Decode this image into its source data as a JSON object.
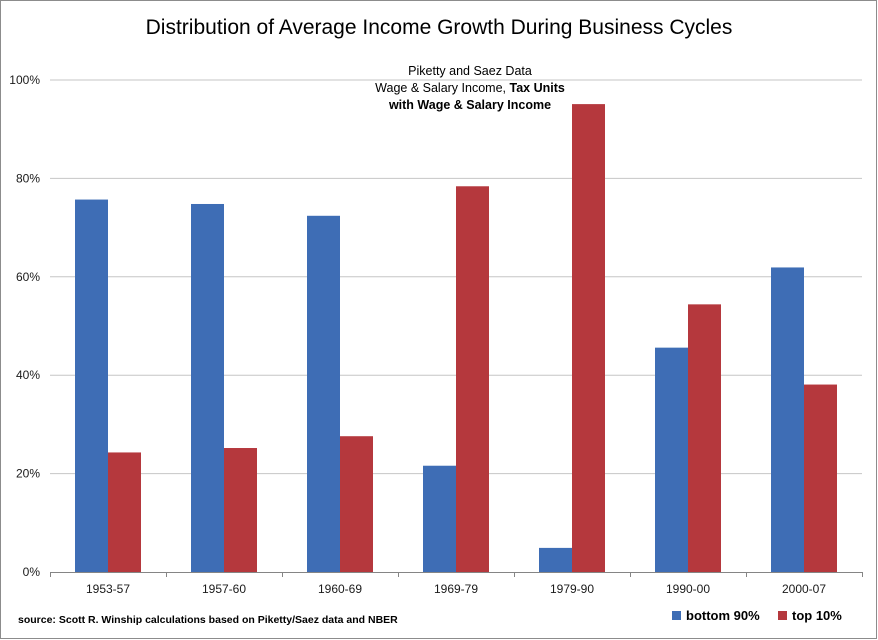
{
  "colors": {
    "bottom90": "#3e6db5",
    "top10": "#b5383d",
    "grid": "#c6c6c6",
    "axis": "#858585"
  },
  "chart_data": {
    "type": "bar",
    "title": "Distribution of Average Income Growth During Business Cycles",
    "subtitle": {
      "line1": "Piketty and Saez Data",
      "line2_regular": "Wage & Salary Income, ",
      "line2_bold": "Tax Units",
      "line3_bold": "with Wage & Salary Income"
    },
    "source": "source: Scott R. Winship calculations based on Piketty/Saez data and NBER",
    "categories": [
      "1953-57",
      "1957-60",
      "1960-69",
      "1969-79",
      "1979-90",
      "1990-00",
      "2000-07"
    ],
    "series": [
      {
        "name": "bottom 90%",
        "values": [
          75.7,
          74.8,
          72.4,
          21.6,
          4.9,
          45.6,
          61.9
        ]
      },
      {
        "name": "top 10%",
        "values": [
          24.3,
          25.2,
          27.6,
          78.4,
          95.1,
          54.4,
          38.1
        ]
      }
    ],
    "ylim": [
      0,
      100
    ],
    "yticks": [
      "0%",
      "20%",
      "40%",
      "60%",
      "80%",
      "100%"
    ],
    "grid": true,
    "legend_position": "bottom-right"
  }
}
